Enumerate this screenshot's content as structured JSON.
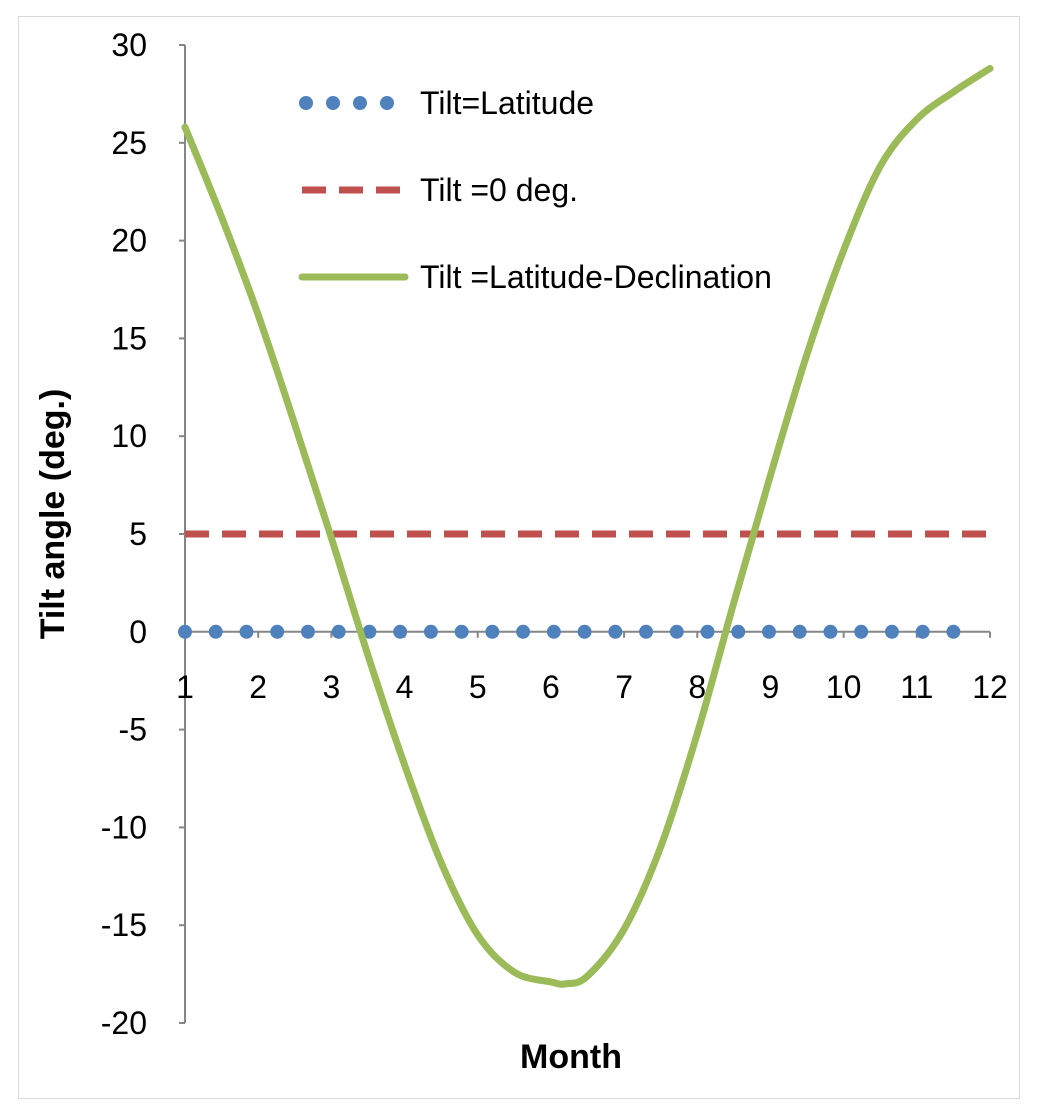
{
  "chart_data": {
    "type": "line",
    "title": "",
    "xlabel": "Month",
    "ylabel": "Tilt angle (deg.)",
    "xlim": [
      1,
      12
    ],
    "ylim": [
      -20,
      30
    ],
    "x_ticks": [
      "1",
      "2",
      "3",
      "4",
      "5",
      "6",
      "7",
      "8",
      "9",
      "10",
      "11",
      "12"
    ],
    "y_ticks": [
      "30",
      "25",
      "20",
      "15",
      "10",
      "5",
      "0",
      "-5",
      "-10",
      "-15",
      "-20"
    ],
    "grid": false,
    "legend_position": "top-left inside",
    "series": [
      {
        "name": "Tilt=Latitude",
        "style": "dotted-markers",
        "color": "#4f81bd",
        "x": [
          1,
          1.42,
          1.84,
          2.26,
          2.68,
          3.1,
          3.52,
          3.94,
          4.36,
          4.78,
          5.2,
          5.62,
          6.04,
          6.46,
          6.88,
          7.3,
          7.72,
          8.14,
          8.56,
          8.98,
          9.4,
          9.82,
          10.24,
          10.66,
          11.08,
          11.5
        ],
        "y": [
          0,
          0,
          0,
          0,
          0,
          0,
          0,
          0,
          0,
          0,
          0,
          0,
          0,
          0,
          0,
          0,
          0,
          0,
          0,
          0,
          0,
          0,
          0,
          0,
          0,
          0
        ]
      },
      {
        "name": "Tilt =0 deg.",
        "style": "dashed",
        "color": "#c0504d",
        "x": [
          1,
          12
        ],
        "y": [
          5,
          5
        ]
      },
      {
        "name": "Tilt =Latitude-Declination",
        "style": "solid",
        "color": "#9bbb59",
        "x": [
          1,
          1.5,
          2,
          2.5,
          3,
          3.5,
          4,
          4.5,
          5,
          5.5,
          6,
          6.2,
          6.5,
          7,
          7.5,
          8,
          8.5,
          9,
          9.5,
          10,
          10.5,
          11,
          11.5,
          12
        ],
        "y": [
          25.8,
          21.2,
          16.2,
          10.6,
          4.8,
          -1.2,
          -6.8,
          -11.8,
          -15.5,
          -17.4,
          -17.9,
          -18.0,
          -17.6,
          -15.2,
          -11.0,
          -5.2,
          1.5,
          8.0,
          14.2,
          19.5,
          23.8,
          26.2,
          27.6,
          28.8
        ]
      }
    ]
  }
}
